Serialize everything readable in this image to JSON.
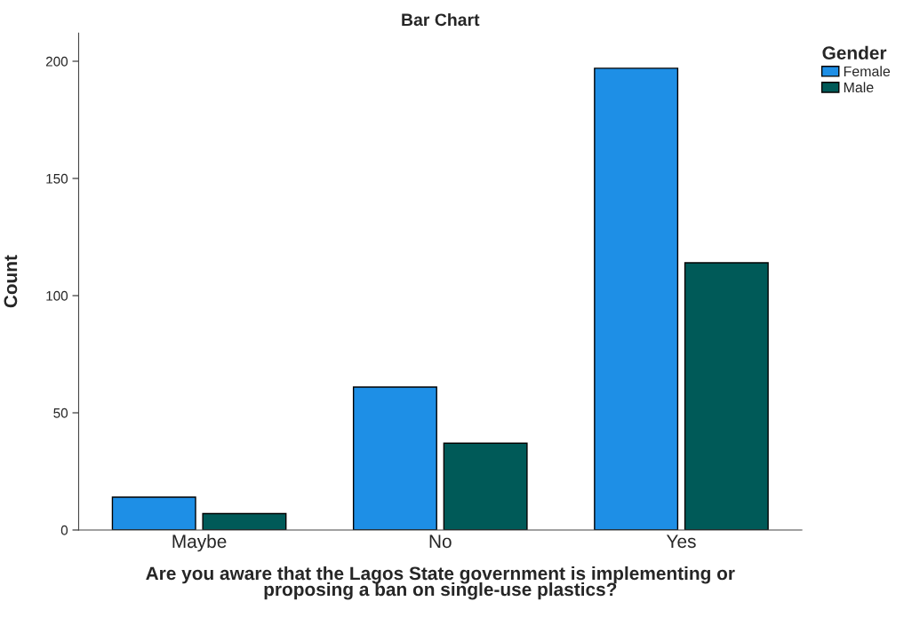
{
  "chart_data": {
    "type": "bar",
    "title": "Bar Chart",
    "xlabel": "Are you aware that the Lagos State government is implementing or\nproposing a ban on single-use plastics?",
    "ylabel": "Count",
    "legend_title": "Gender",
    "categories": [
      "Maybe",
      "No",
      "Yes"
    ],
    "series": [
      {
        "name": "Female",
        "color": "#1e8fe6",
        "values": [
          14,
          61,
          197
        ]
      },
      {
        "name": "Male",
        "color": "#005a58",
        "values": [
          7,
          37,
          114
        ]
      }
    ],
    "ylim": [
      0,
      212
    ],
    "yticks": [
      0,
      50,
      100,
      150,
      200
    ],
    "grid": false,
    "legend": "top right"
  }
}
